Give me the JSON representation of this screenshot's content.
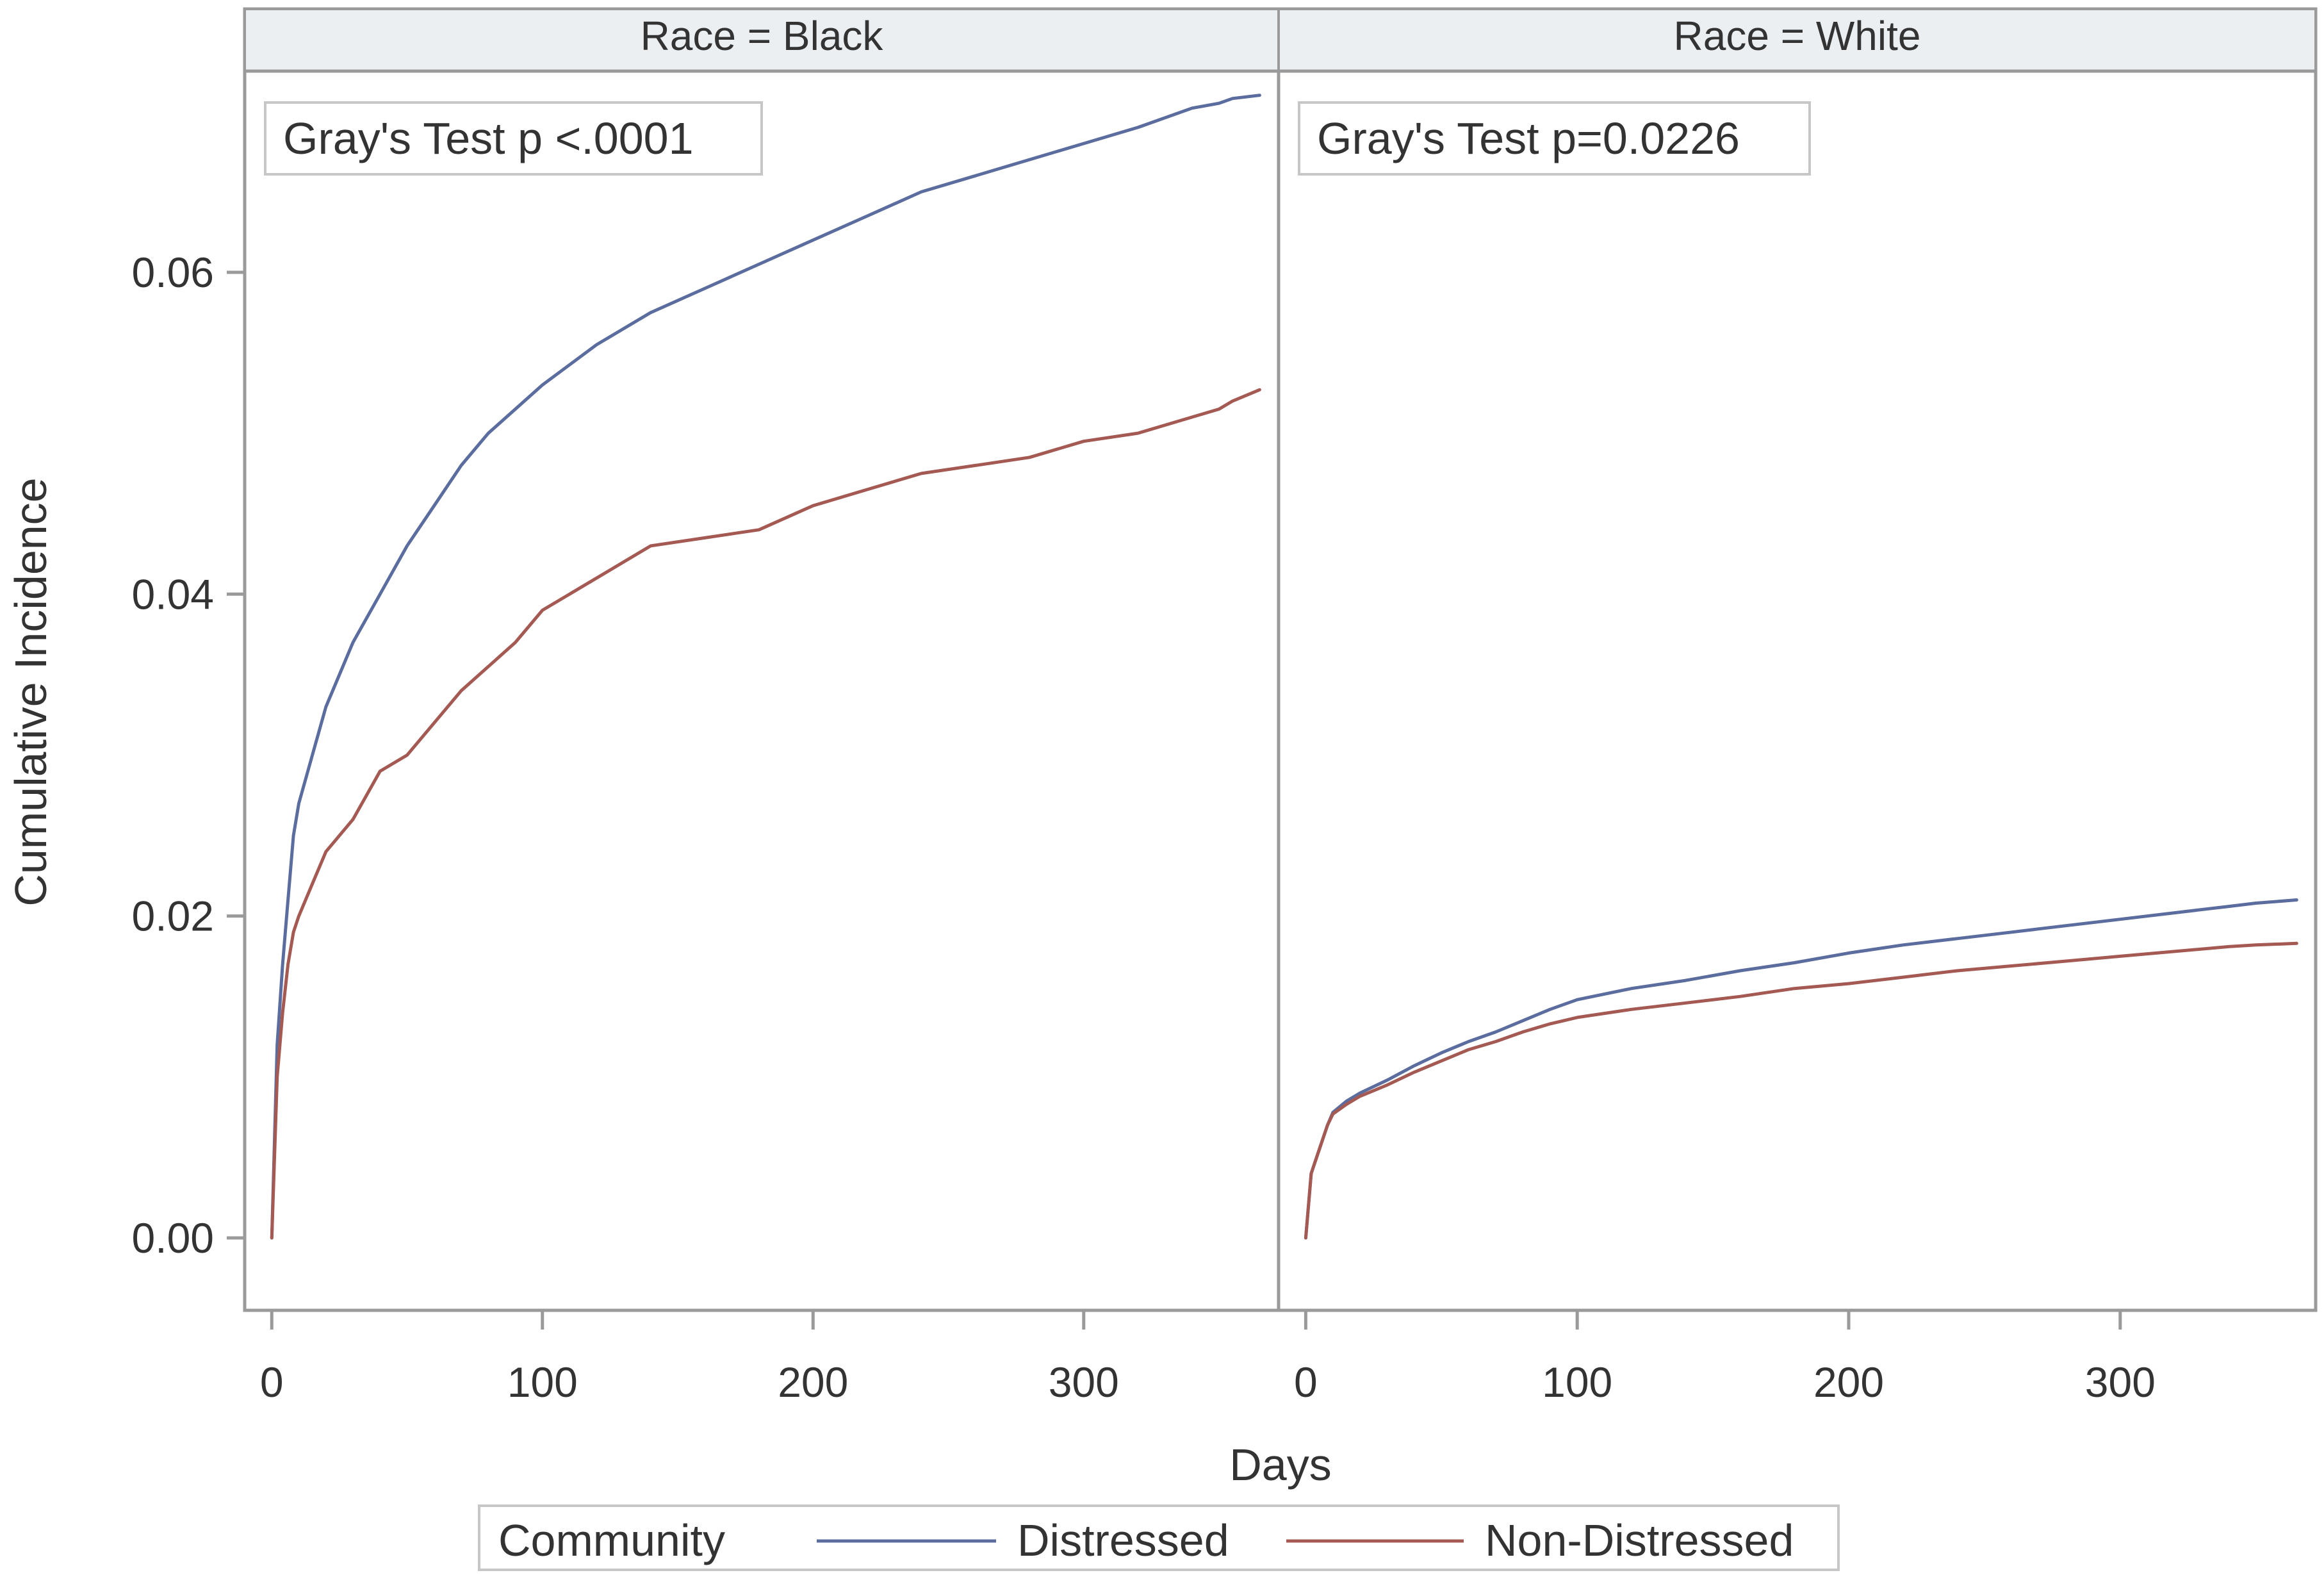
{
  "chart_data": {
    "type": "line",
    "ylabel": "Cumulative Incidence",
    "xlabel": "Days",
    "xlim": [
      -10,
      372
    ],
    "ylim": [
      -0.0045,
      0.0725
    ],
    "x_ticks": [
      0,
      100,
      200,
      300
    ],
    "x_tick_labels": [
      "0",
      "100",
      "200",
      "300"
    ],
    "y_ticks": [
      0.0,
      0.02,
      0.04,
      0.06
    ],
    "y_tick_labels": [
      "0.00",
      "0.02",
      "0.04",
      "0.06"
    ],
    "legend": {
      "title": "Community",
      "position": "bottom",
      "entries": [
        "Distressed",
        "Non-Distressed"
      ]
    },
    "colors": {
      "Distressed": "#5b6d9e",
      "Non-Distressed": "#a45a52"
    },
    "panels": [
      {
        "header": "Race = Black",
        "annotation": "Gray's Test p <.0001",
        "series": [
          {
            "name": "Distressed",
            "x": [
              0,
              2,
              4,
              6,
              8,
              10,
              15,
              20,
              30,
              40,
              50,
              60,
              70,
              80,
              90,
              100,
              120,
              140,
              160,
              180,
              200,
              220,
              240,
              260,
              280,
              300,
              320,
              340,
              350,
              355,
              365
            ],
            "y": [
              0.0,
              0.012,
              0.017,
              0.021,
              0.025,
              0.027,
              0.03,
              0.033,
              0.037,
              0.04,
              0.043,
              0.0455,
              0.048,
              0.05,
              0.0515,
              0.053,
              0.0555,
              0.0575,
              0.059,
              0.0605,
              0.062,
              0.0635,
              0.065,
              0.066,
              0.067,
              0.068,
              0.069,
              0.0702,
              0.0705,
              0.0708,
              0.071
            ]
          },
          {
            "name": "Non-Distressed",
            "x": [
              0,
              2,
              4,
              6,
              8,
              10,
              15,
              20,
              30,
              40,
              50,
              60,
              70,
              80,
              90,
              100,
              120,
              140,
              160,
              180,
              200,
              220,
              240,
              260,
              280,
              300,
              320,
              340,
              350,
              355,
              365
            ],
            "y": [
              0.0,
              0.01,
              0.014,
              0.017,
              0.019,
              0.02,
              0.022,
              0.024,
              0.026,
              0.029,
              0.03,
              0.032,
              0.034,
              0.0355,
              0.037,
              0.039,
              0.041,
              0.043,
              0.0435,
              0.044,
              0.0455,
              0.0465,
              0.0475,
              0.048,
              0.0485,
              0.0495,
              0.05,
              0.051,
              0.0515,
              0.052,
              0.0527
            ]
          }
        ]
      },
      {
        "header": "Race = White",
        "annotation": "Gray's Test p=0.0226",
        "series": [
          {
            "name": "Distressed",
            "x": [
              0,
              2,
              4,
              6,
              8,
              10,
              15,
              20,
              30,
              40,
              50,
              60,
              70,
              80,
              90,
              100,
              120,
              140,
              160,
              180,
              200,
              220,
              240,
              260,
              280,
              300,
              320,
              340,
              350,
              365
            ],
            "y": [
              0.0,
              0.004,
              0.005,
              0.006,
              0.007,
              0.0078,
              0.0085,
              0.009,
              0.0098,
              0.0107,
              0.0115,
              0.0122,
              0.0128,
              0.0135,
              0.0142,
              0.0148,
              0.0155,
              0.016,
              0.0166,
              0.0171,
              0.0177,
              0.0182,
              0.0186,
              0.019,
              0.0194,
              0.0198,
              0.0202,
              0.0206,
              0.0208,
              0.021
            ]
          },
          {
            "name": "Non-Distressed",
            "x": [
              0,
              2,
              4,
              6,
              8,
              10,
              15,
              20,
              30,
              40,
              50,
              60,
              70,
              80,
              90,
              100,
              120,
              140,
              160,
              180,
              200,
              220,
              240,
              260,
              280,
              300,
              320,
              340,
              350,
              365
            ],
            "y": [
              0.0,
              0.004,
              0.005,
              0.006,
              0.007,
              0.0077,
              0.0083,
              0.0088,
              0.0095,
              0.0103,
              0.011,
              0.0117,
              0.0122,
              0.0128,
              0.0133,
              0.0137,
              0.0142,
              0.0146,
              0.015,
              0.0155,
              0.0158,
              0.0162,
              0.0166,
              0.0169,
              0.0172,
              0.0175,
              0.0178,
              0.0181,
              0.0182,
              0.0183
            ]
          }
        ]
      }
    ]
  }
}
